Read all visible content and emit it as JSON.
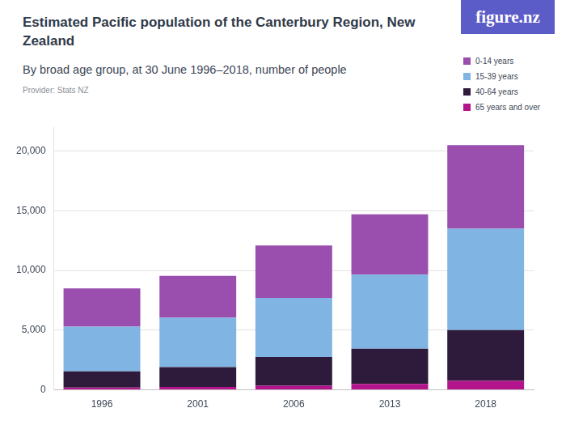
{
  "chart_data": {
    "type": "bar",
    "title": "Estimated Pacific population of the Canterbury Region, New Zealand",
    "subtitle": "By broad age group, at 30 June 1996–2018, number of people",
    "source": "Provider: Stats NZ",
    "logo": "figure.nz",
    "categories": [
      "1996",
      "2001",
      "2006",
      "2013",
      "2018"
    ],
    "series": [
      {
        "name": "0-14 years",
        "color": "#9a4eae",
        "values": [
          3200,
          3500,
          4400,
          5050,
          7000
        ]
      },
      {
        "name": "15-39 years",
        "color": "#7fb4e3",
        "values": [
          3750,
          4150,
          4950,
          6200,
          8500
        ]
      },
      {
        "name": "40-64 years",
        "color": "#2e1a3a",
        "values": [
          1350,
          1650,
          2400,
          2950,
          4250
        ]
      },
      {
        "name": "65 years and over",
        "color": "#b3148c",
        "values": [
          200,
          250,
          350,
          500,
          750
        ]
      }
    ],
    "stacked": true,
    "ylim": [
      0,
      22000
    ],
    "yticks": [
      0,
      {
        "value": 5000,
        "label": "5,000"
      },
      {
        "value": 10000,
        "label": "10,000"
      },
      {
        "value": 15000,
        "label": "15,000"
      },
      {
        "value": 20000,
        "label": "20,000"
      }
    ],
    "grid": true,
    "legend": "top-right"
  }
}
